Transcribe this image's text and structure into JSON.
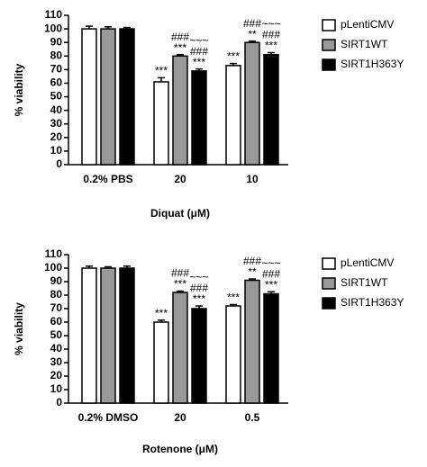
{
  "chart_data": [
    {
      "type": "bar",
      "xlabel": "Diquat (μM)",
      "ylabel": "% viability",
      "categories": [
        "0.2% PBS",
        "20",
        "10"
      ],
      "ylim": [
        0,
        110
      ],
      "yticks": [
        0,
        10,
        20,
        30,
        40,
        50,
        60,
        70,
        80,
        90,
        100,
        110
      ],
      "series": [
        {
          "name": "pLentiCMV",
          "color": "#ffffff",
          "values": [
            100,
            61,
            73
          ],
          "errors": [
            2,
            3,
            1.5
          ],
          "annotations": [
            null,
            [
              "***"
            ],
            [
              "***"
            ]
          ]
        },
        {
          "name": "SIRT1WT",
          "color": "#999999",
          "values": [
            100,
            80,
            90
          ],
          "errors": [
            1.5,
            1,
            1
          ],
          "annotations": [
            null,
            [
              "###",
              "***"
            ],
            [
              "###",
              "**"
            ]
          ]
        },
        {
          "name": "SIRT1H363Y",
          "color": "#000000",
          "values": [
            100,
            69,
            81
          ],
          "errors": [
            1,
            1.5,
            1.5
          ],
          "annotations": [
            null,
            [
              "~~~",
              "###",
              "***"
            ],
            [
              "~~~",
              "###",
              "***"
            ]
          ]
        }
      ]
    },
    {
      "type": "bar",
      "xlabel": "Rotenone (μM)",
      "ylabel": "% viability",
      "categories": [
        "0.2% DMSO",
        "20",
        "0.5"
      ],
      "ylim": [
        0,
        110
      ],
      "yticks": [
        0,
        10,
        20,
        30,
        40,
        50,
        60,
        70,
        80,
        90,
        100,
        110
      ],
      "series": [
        {
          "name": "pLentiCMV",
          "color": "#ffffff",
          "values": [
            100,
            60,
            72
          ],
          "errors": [
            1.5,
            1.5,
            1
          ],
          "annotations": [
            null,
            [
              "***"
            ],
            [
              "***"
            ]
          ]
        },
        {
          "name": "SIRT1WT",
          "color": "#999999",
          "values": [
            100,
            82,
            91
          ],
          "errors": [
            1,
            1,
            1
          ],
          "annotations": [
            null,
            [
              "###",
              "***"
            ],
            [
              "###",
              "**"
            ]
          ]
        },
        {
          "name": "SIRT1H363Y",
          "color": "#000000",
          "values": [
            100,
            70,
            81
          ],
          "errors": [
            1.5,
            2,
            1.5
          ],
          "annotations": [
            null,
            [
              "~~~",
              "###",
              "***"
            ],
            [
              "~~~",
              "###",
              "***"
            ]
          ]
        }
      ]
    }
  ]
}
